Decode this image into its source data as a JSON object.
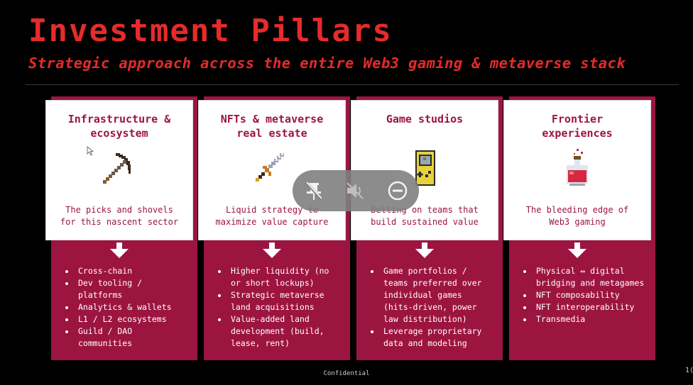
{
  "slide": {
    "title": "Investment Pillars",
    "subtitle": "Strategic approach across the entire Web3 gaming & metaverse stack",
    "footer": "Confidential",
    "page_number": "1("
  },
  "colors": {
    "accent_red": "#e52b2b",
    "pillar_bg": "#9c1541",
    "card_bg": "#ffffff",
    "background": "#000000"
  },
  "pillars": [
    {
      "title_lines": [
        "Infrastructure &",
        "ecosystem"
      ],
      "icon": "pickaxe-icon",
      "desc_lines": [
        "The picks and shovels",
        "for this nascent sector"
      ],
      "bullets": [
        [
          "Cross-chain"
        ],
        [
          "Dev tooling /",
          "platforms"
        ],
        [
          "Analytics & wallets"
        ],
        [
          "L1 / L2 ecosystems"
        ],
        [
          "Guild / DAO",
          "communities"
        ]
      ]
    },
    {
      "title_lines": [
        "NFTs & metaverse",
        "real estate"
      ],
      "icon": "sword-icon",
      "desc_lines": [
        "Liquid strategy to",
        "maximize value capture"
      ],
      "bullets": [
        [
          "Higher liquidity (no",
          "or short lockups)"
        ],
        [
          "Strategic metaverse",
          "land acquisitions"
        ],
        [
          "Value-added land",
          "development (build,",
          "lease, rent)"
        ]
      ]
    },
    {
      "title_lines": [
        "Game studios"
      ],
      "icon": "handheld-console-icon",
      "desc_lines": [
        "Betting on teams that",
        "build sustained value"
      ],
      "bullets": [
        [
          "Game portfolios /",
          "teams preferred over",
          "individual games",
          "(hits-driven, power",
          "law distribution)"
        ],
        [
          "Leverage proprietary",
          "data and modeling"
        ]
      ]
    },
    {
      "title_lines": [
        "Frontier",
        "experiences"
      ],
      "icon": "potion-flask-icon",
      "desc_lines": [
        "The bleeding edge of",
        "Web3 gaming"
      ],
      "bullets": [
        [
          "Physical ↔ digital",
          "bridging and metagames"
        ],
        [
          "NFT composability"
        ],
        [
          "NFT interoperability"
        ],
        [
          "Transmedia"
        ]
      ]
    }
  ],
  "overlay_controls": {
    "buttons": [
      {
        "icon": "unpin-icon"
      },
      {
        "icon": "mute-icon"
      },
      {
        "icon": "minimize-icon"
      }
    ]
  }
}
